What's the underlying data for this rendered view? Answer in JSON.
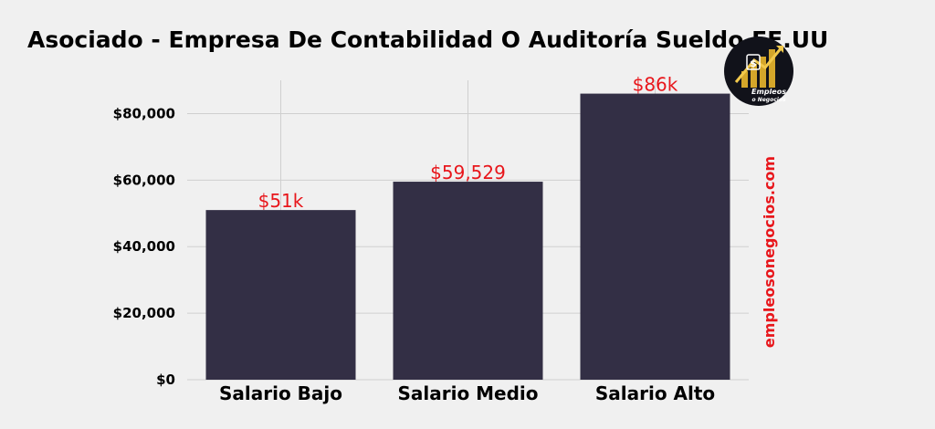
{
  "chart_data": {
    "type": "bar",
    "title": "Asociado - Empresa De Contabilidad O Auditoría Sueldo EE.UU",
    "categories": [
      "Salario Bajo",
      "Salario Medio",
      "Salario Alto"
    ],
    "values": [
      51000,
      59529,
      86000
    ],
    "data_labels": [
      "$51k",
      "$59,529",
      "$86k"
    ],
    "ylim": [
      0,
      90000
    ],
    "yticks": [
      0,
      20000,
      40000,
      60000,
      80000
    ],
    "ytick_labels": [
      "$0",
      "$20,000",
      "$40,000",
      "$60,000",
      "$80,000"
    ],
    "xlabel": "",
    "ylabel": "",
    "grid": true,
    "colors": {
      "bar": "#332f45",
      "data_label": "#e8161b",
      "grid": "#cfcfcf",
      "background": "#f0f0f0"
    }
  },
  "watermark": {
    "text": "empleosonegocios.com",
    "color": "#e8161b"
  },
  "logo": {
    "text_line1": "Empleos",
    "text_line2": "o Negocios",
    "icon": "dollar-chart-logo-icon"
  }
}
